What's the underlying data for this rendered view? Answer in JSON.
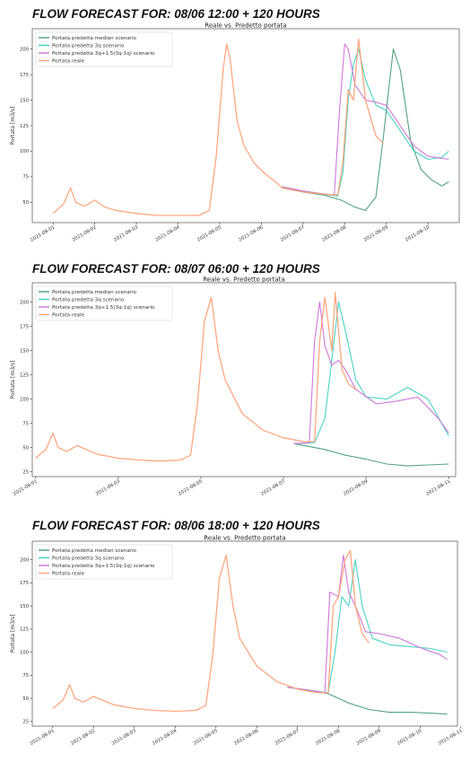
{
  "colors": {
    "median": "#4a9e7a",
    "q3": "#40d0c0",
    "q3iqr": "#cc70d8",
    "reale": "#ffa27a",
    "axes": "#333333"
  },
  "chart_data": [
    {
      "type": "line",
      "heading": "FLOW FORECAST FOR: 08/06 12:00 + 120 HOURS",
      "title": "Reale vs. Predetto portata",
      "ylabel": "Portata [m3/s]",
      "xlabel": "",
      "yticks": [
        50,
        75,
        100,
        125,
        150,
        175,
        200
      ],
      "ylim": [
        30,
        220
      ],
      "xlim": [
        "2021-07-31T12:00",
        "2021-08-10T18:00"
      ],
      "xticks": [
        "2021-08-01",
        "2021-08-02",
        "2021-08-03",
        "2021-08-04",
        "2021-08-05",
        "2021-08-06",
        "2021-08-07",
        "2021-08-08",
        "2021-08-09",
        "2021-08-10"
      ],
      "legend_position": "top-left",
      "legend_order": [
        "median",
        "q3",
        "q3iqr",
        "reale"
      ],
      "series": [
        {
          "key": "median",
          "name": "Portata predetta median scenario",
          "x": [
            "2021-08-06T12:00",
            "2021-08-07T00:00",
            "2021-08-07T12:00",
            "2021-08-07T22:00",
            "2021-08-08T06:00",
            "2021-08-08T12:00",
            "2021-08-08T18:00",
            "2021-08-08T22:00",
            "2021-08-09T02:00",
            "2021-08-09T04:00",
            "2021-08-09T08:00",
            "2021-08-09T14:00",
            "2021-08-09T20:00",
            "2021-08-10T02:00",
            "2021-08-10T08:00",
            "2021-08-10T12:00"
          ],
          "y": [
            64,
            60,
            57,
            52,
            45,
            42,
            55,
            110,
            170,
            200,
            180,
            110,
            82,
            72,
            66,
            70
          ]
        },
        {
          "key": "q3",
          "name": "Portata predetta 3q scenario",
          "x": [
            "2021-08-06T12:00",
            "2021-08-07T00:00",
            "2021-08-07T12:00",
            "2021-08-07T20:00",
            "2021-08-07T23:00",
            "2021-08-08T02:00",
            "2021-08-08T05:00",
            "2021-08-08T08:00",
            "2021-08-08T12:00",
            "2021-08-08T18:00",
            "2021-08-09T00:00",
            "2021-08-09T08:00",
            "2021-08-09T16:00",
            "2021-08-10T00:00",
            "2021-08-10T08:00",
            "2021-08-10T12:00"
          ],
          "y": [
            65,
            61,
            58,
            56,
            80,
            150,
            185,
            200,
            170,
            145,
            140,
            120,
            100,
            92,
            94,
            100
          ]
        },
        {
          "key": "q3iqr",
          "name": "Portata predetta 3q+1.5(3q-1q) scenario",
          "x": [
            "2021-08-06T12:00",
            "2021-08-07T00:00",
            "2021-08-07T12:00",
            "2021-08-07T18:00",
            "2021-08-07T21:00",
            "2021-08-08T00:00",
            "2021-08-08T02:00",
            "2021-08-08T06:00",
            "2021-08-08T12:00",
            "2021-08-08T18:00",
            "2021-08-09T00:00",
            "2021-08-09T08:00",
            "2021-08-09T16:00",
            "2021-08-10T00:00",
            "2021-08-10T12:00"
          ],
          "y": [
            65,
            61,
            58,
            57,
            140,
            205,
            200,
            165,
            150,
            148,
            145,
            125,
            105,
            95,
            92
          ]
        },
        {
          "key": "reale",
          "name": "Portata reale",
          "x": [
            "2021-08-01T00:00",
            "2021-08-01T06:00",
            "2021-08-01T10:00",
            "2021-08-01T13:00",
            "2021-08-01T18:00",
            "2021-08-02T00:00",
            "2021-08-02T06:00",
            "2021-08-02T12:00",
            "2021-08-03T00:00",
            "2021-08-03T12:00",
            "2021-08-04T00:00",
            "2021-08-04T12:00",
            "2021-08-04T18:00",
            "2021-08-04T22:00",
            "2021-08-05T02:00",
            "2021-08-05T04:00",
            "2021-08-05T06:00",
            "2021-08-05T10:00",
            "2021-08-05T14:00",
            "2021-08-05T20:00",
            "2021-08-06T02:00",
            "2021-08-06T08:00",
            "2021-08-06T12:00",
            "2021-08-07T00:00",
            "2021-08-07T12:00",
            "2021-08-07T20:00",
            "2021-08-07T23:00",
            "2021-08-08T02:00",
            "2021-08-08T05:00",
            "2021-08-08T08:00",
            "2021-08-08T12:00",
            "2021-08-08T18:00",
            "2021-08-08T22:00"
          ],
          "y": [
            39,
            48,
            64,
            50,
            46,
            52,
            45,
            42,
            39,
            37,
            37,
            37,
            42,
            95,
            180,
            205,
            190,
            130,
            105,
            88,
            78,
            70,
            64,
            60,
            58,
            57,
            90,
            160,
            150,
            210,
            150,
            115,
            108
          ]
        }
      ]
    },
    {
      "type": "line",
      "heading": "FLOW FORECAST FOR: 08/07 06:00 + 120 HOURS",
      "title": "Reale vs. Predetto portata",
      "ylabel": "Portata [m3/s]",
      "xlabel": "",
      "yticks": [
        25,
        50,
        75,
        100,
        125,
        150,
        175,
        200
      ],
      "ylim": [
        20,
        220
      ],
      "xlim": [
        "2021-07-31T22:00",
        "2021-08-11T04:00"
      ],
      "xticks": [
        "2021-08-01",
        "2021-08-03",
        "2021-08-05",
        "2021-08-07",
        "2021-08-09",
        "2021-08-11"
      ],
      "legend_position": "top-left",
      "legend_order": [
        "median",
        "q3",
        "q3iqr",
        "reale"
      ],
      "series": [
        {
          "key": "median",
          "name": "Portata predetta median scenario",
          "x": [
            "2021-08-07T06:00",
            "2021-08-08T00:00",
            "2021-08-08T12:00",
            "2021-08-09T00:00",
            "2021-08-09T12:00",
            "2021-08-10T00:00",
            "2021-08-10T12:00",
            "2021-08-11T00:00"
          ],
          "y": [
            54,
            48,
            42,
            38,
            33,
            31,
            32,
            33
          ]
        },
        {
          "key": "q3",
          "name": "Portata predetta 3q scenario",
          "x": [
            "2021-08-07T06:00",
            "2021-08-07T18:00",
            "2021-08-08T00:00",
            "2021-08-08T04:00",
            "2021-08-08T08:00",
            "2021-08-08T12:00",
            "2021-08-08T18:00",
            "2021-08-09T00:00",
            "2021-08-09T12:00",
            "2021-08-10T00:00",
            "2021-08-10T12:00",
            "2021-08-11T00:00"
          ],
          "y": [
            54,
            55,
            80,
            140,
            200,
            170,
            120,
            102,
            100,
            112,
            100,
            62
          ]
        },
        {
          "key": "q3iqr",
          "name": "Portata predetta 3q+1.5(3q-1q) scenario",
          "x": [
            "2021-08-07T06:00",
            "2021-08-07T15:00",
            "2021-08-07T18:00",
            "2021-08-07T21:00",
            "2021-08-08T00:00",
            "2021-08-08T04:00",
            "2021-08-08T08:00",
            "2021-08-08T12:00",
            "2021-08-08T18:00",
            "2021-08-09T06:00",
            "2021-08-09T18:00",
            "2021-08-10T06:00",
            "2021-08-10T18:00",
            "2021-08-11T00:00"
          ],
          "y": [
            54,
            55,
            160,
            200,
            155,
            135,
            140,
            130,
            110,
            95,
            98,
            102,
            80,
            65
          ]
        },
        {
          "key": "reale",
          "name": "Portata reale",
          "x": [
            "2021-08-01T00:00",
            "2021-08-01T06:00",
            "2021-08-01T10:00",
            "2021-08-01T13:00",
            "2021-08-01T18:00",
            "2021-08-02T00:00",
            "2021-08-02T12:00",
            "2021-08-03T00:00",
            "2021-08-03T12:00",
            "2021-08-04T00:00",
            "2021-08-04T12:00",
            "2021-08-04T18:00",
            "2021-08-04T22:00",
            "2021-08-05T02:00",
            "2021-08-05T06:00",
            "2021-08-05T10:00",
            "2021-08-05T14:00",
            "2021-08-06T00:00",
            "2021-08-06T12:00",
            "2021-08-07T00:00",
            "2021-08-07T12:00",
            "2021-08-07T18:00",
            "2021-08-07T21:00",
            "2021-08-08T00:00",
            "2021-08-08T04:00",
            "2021-08-08T06:00",
            "2021-08-08T10:00",
            "2021-08-08T14:00",
            "2021-08-08T18:00"
          ],
          "y": [
            39,
            48,
            65,
            50,
            46,
            52,
            43,
            39,
            37,
            36,
            37,
            42,
            95,
            180,
            205,
            150,
            120,
            85,
            68,
            60,
            56,
            56,
            160,
            205,
            150,
            210,
            130,
            115,
            110
          ]
        }
      ]
    },
    {
      "type": "line",
      "heading": "FLOW FORECAST FOR: 08/06 18:00 + 120 HOURS",
      "title": "Reale vs. Predetto portata",
      "ylabel": "Portata [m3/s]",
      "xlabel": "",
      "yticks": [
        25,
        50,
        75,
        100,
        125,
        150,
        175,
        200
      ],
      "ylim": [
        20,
        220
      ],
      "xlim": [
        "2021-07-31T12:00",
        "2021-08-10T22:00"
      ],
      "xticks": [
        "2021-08-01",
        "2021-08-02",
        "2021-08-03",
        "2021-08-04",
        "2021-08-05",
        "2021-08-06",
        "2021-08-07",
        "2021-08-08",
        "2021-08-09",
        "2021-08-10",
        "2021-08-11"
      ],
      "legend_position": "top-left",
      "legend_order": [
        "median",
        "q3",
        "q3iqr",
        "reale"
      ],
      "series": [
        {
          "key": "median",
          "name": "Portata predetta median scenario",
          "x": [
            "2021-08-06T18:00",
            "2021-08-07T06:00",
            "2021-08-07T18:00",
            "2021-08-08T06:00",
            "2021-08-08T18:00",
            "2021-08-09T06:00",
            "2021-08-09T18:00",
            "2021-08-10T06:00",
            "2021-08-10T16:00"
          ],
          "y": [
            62,
            59,
            55,
            45,
            38,
            35,
            35,
            34,
            33
          ]
        },
        {
          "key": "q3",
          "name": "Portata predetta 3q scenario",
          "x": [
            "2021-08-06T18:00",
            "2021-08-07T06:00",
            "2021-08-07T18:00",
            "2021-08-07T22:00",
            "2021-08-08T02:00",
            "2021-08-08T06:00",
            "2021-08-08T10:00",
            "2021-08-08T14:00",
            "2021-08-08T20:00",
            "2021-08-09T06:00",
            "2021-08-09T18:00",
            "2021-08-10T06:00",
            "2021-08-10T16:00"
          ],
          "y": [
            62,
            59,
            56,
            100,
            160,
            150,
            200,
            150,
            115,
            108,
            106,
            104,
            100
          ]
        },
        {
          "key": "q3iqr",
          "name": "Portata predetta 3q+1.5(3q-1q) scenario",
          "x": [
            "2021-08-06T18:00",
            "2021-08-07T06:00",
            "2021-08-07T16:00",
            "2021-08-07T19:00",
            "2021-08-08T00:00",
            "2021-08-08T03:00",
            "2021-08-08T06:00",
            "2021-08-08T10:00",
            "2021-08-08T16:00",
            "2021-08-09T00:00",
            "2021-08-09T12:00",
            "2021-08-10T00:00",
            "2021-08-10T12:00",
            "2021-08-10T16:00"
          ],
          "y": [
            62,
            59,
            56,
            165,
            160,
            205,
            165,
            150,
            122,
            120,
            115,
            105,
            97,
            92
          ]
        },
        {
          "key": "reale",
          "name": "Portata reale",
          "x": [
            "2021-08-01T00:00",
            "2021-08-01T06:00",
            "2021-08-01T10:00",
            "2021-08-01T13:00",
            "2021-08-01T18:00",
            "2021-08-02T00:00",
            "2021-08-02T12:00",
            "2021-08-03T00:00",
            "2021-08-03T12:00",
            "2021-08-04T00:00",
            "2021-08-04T12:00",
            "2021-08-04T18:00",
            "2021-08-04T22:00",
            "2021-08-05T02:00",
            "2021-08-05T06:00",
            "2021-08-05T10:00",
            "2021-08-05T14:00",
            "2021-08-06T00:00",
            "2021-08-06T12:00",
            "2021-08-07T00:00",
            "2021-08-07T12:00",
            "2021-08-07T18:00",
            "2021-08-07T21:00",
            "2021-08-08T00:00",
            "2021-08-08T04:00",
            "2021-08-08T07:00",
            "2021-08-08T10:00",
            "2021-08-08T14:00",
            "2021-08-08T18:00"
          ],
          "y": [
            39,
            48,
            65,
            50,
            46,
            52,
            43,
            39,
            37,
            36,
            37,
            42,
            95,
            180,
            205,
            150,
            115,
            85,
            68,
            60,
            56,
            56,
            150,
            160,
            200,
            210,
            150,
            120,
            110
          ]
        }
      ]
    }
  ]
}
